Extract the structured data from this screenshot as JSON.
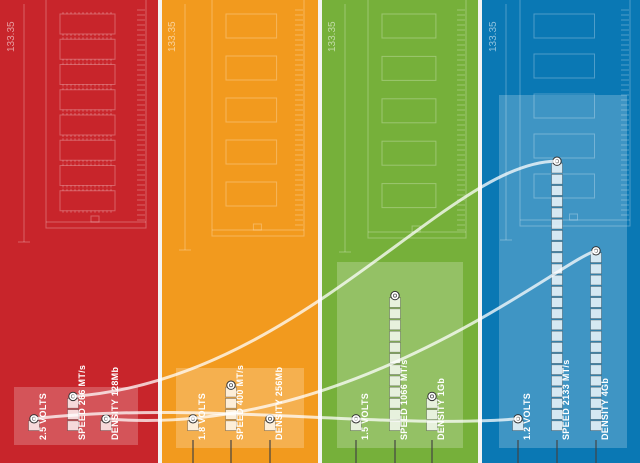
{
  "colors": {
    "ddr1": "#c8252b",
    "ddr2": "#f29a1e",
    "ddr3": "#76b03a",
    "ddr4": "#0a78b4",
    "line": "#ffffff"
  },
  "panels": [
    {
      "id": "ddr1",
      "dimension": "133.35",
      "voltage": "2.5 VOLTS",
      "speed": "SPEED 266 MT/s",
      "density": "DENSITY 128Mb",
      "speed_level": 3,
      "density_level": 1
    },
    {
      "id": "ddr2",
      "dimension": "133.35",
      "voltage": "1.8 VOLTS",
      "speed": "SPEED 400 MT/s",
      "density": "DENSITY 256Mb",
      "speed_level": 4,
      "density_level": 1
    },
    {
      "id": "ddr3",
      "dimension": "133.35",
      "voltage": "1.5 VOLTS",
      "speed": "SPEED 1066 MT/s",
      "density": "DENSITY 1Gb",
      "speed_level": 12,
      "density_level": 3
    },
    {
      "id": "ddr4",
      "dimension": "133.35",
      "voltage": "1.2 VOLTS",
      "speed": "SPEED 2133 MT/s",
      "density": "DENSITY 4Gb",
      "speed_level": 24,
      "density_level": 16
    }
  ]
}
